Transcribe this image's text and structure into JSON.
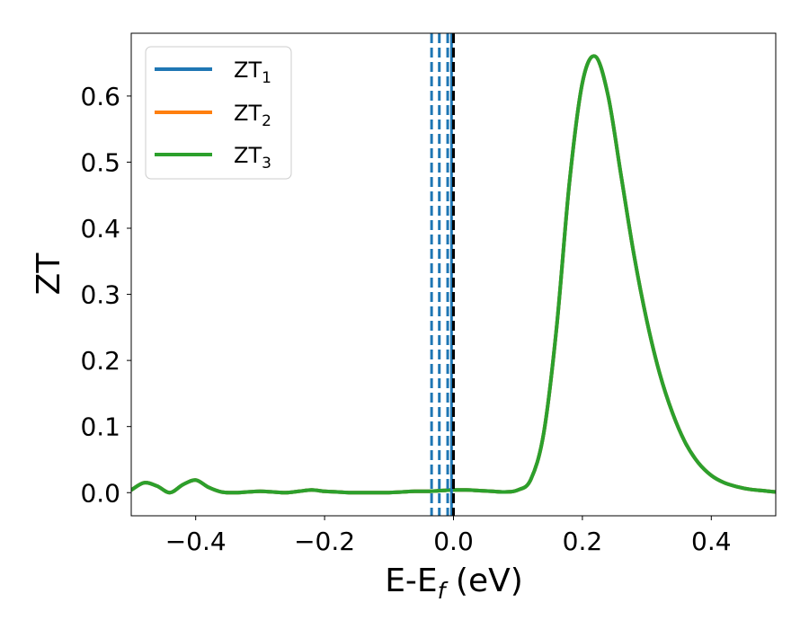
{
  "chart_data": {
    "type": "line",
    "xlabel": "E-E",
    "xlabel_subscript": "f",
    "xlabel_unit": " (eV)",
    "ylabel": "ZT",
    "xlim": [
      -0.5,
      0.5
    ],
    "ylim": [
      -0.035,
      0.695
    ],
    "xticks": [
      -0.4,
      -0.2,
      0.0,
      0.2,
      0.4
    ],
    "xtick_labels": [
      "−0.4",
      "−0.2",
      "0.0",
      "0.2",
      "0.4"
    ],
    "yticks": [
      0.0,
      0.1,
      0.2,
      0.3,
      0.4,
      0.5,
      0.6
    ],
    "ytick_labels": [
      "0.0",
      "0.1",
      "0.2",
      "0.3",
      "0.4",
      "0.5",
      "0.6"
    ],
    "grid": false,
    "legend_position": "top-left",
    "x": [
      -0.5,
      -0.48,
      -0.46,
      -0.44,
      -0.42,
      -0.4,
      -0.38,
      -0.36,
      -0.34,
      -0.32,
      -0.3,
      -0.28,
      -0.26,
      -0.24,
      -0.22,
      -0.2,
      -0.18,
      -0.16,
      -0.14,
      -0.12,
      -0.1,
      -0.08,
      -0.06,
      -0.04,
      -0.02,
      0.0,
      0.02,
      0.04,
      0.06,
      0.08,
      0.1,
      0.12,
      0.14,
      0.16,
      0.18,
      0.2,
      0.22,
      0.24,
      0.26,
      0.28,
      0.3,
      0.32,
      0.34,
      0.36,
      0.38,
      0.4,
      0.42,
      0.44,
      0.46,
      0.48,
      0.5
    ],
    "series": [
      {
        "name": "ZT",
        "subscript": "1",
        "color": "#1f77b4",
        "values": [
          0.004,
          0.015,
          0.01,
          0.0,
          0.012,
          0.019,
          0.008,
          0.001,
          0.0,
          0.001,
          0.002,
          0.001,
          0.0,
          0.002,
          0.004,
          0.002,
          0.001,
          0.0,
          0.0,
          0.0,
          0.0,
          0.001,
          0.002,
          0.002,
          0.003,
          0.004,
          0.004,
          0.003,
          0.002,
          0.001,
          0.004,
          0.02,
          0.09,
          0.25,
          0.47,
          0.62,
          0.66,
          0.6,
          0.48,
          0.36,
          0.26,
          0.18,
          0.12,
          0.075,
          0.045,
          0.026,
          0.015,
          0.009,
          0.005,
          0.003,
          0.001
        ]
      },
      {
        "name": "ZT",
        "subscript": "2",
        "color": "#ff7f0e",
        "values": [
          0.004,
          0.015,
          0.01,
          0.0,
          0.012,
          0.019,
          0.008,
          0.001,
          0.0,
          0.001,
          0.002,
          0.001,
          0.0,
          0.002,
          0.004,
          0.002,
          0.001,
          0.0,
          0.0,
          0.0,
          0.0,
          0.001,
          0.002,
          0.002,
          0.003,
          0.004,
          0.004,
          0.003,
          0.002,
          0.001,
          0.004,
          0.02,
          0.09,
          0.25,
          0.47,
          0.62,
          0.66,
          0.6,
          0.48,
          0.36,
          0.26,
          0.18,
          0.12,
          0.075,
          0.045,
          0.026,
          0.015,
          0.009,
          0.005,
          0.003,
          0.001
        ]
      },
      {
        "name": "ZT",
        "subscript": "3",
        "color": "#2ca02c",
        "values": [
          0.004,
          0.015,
          0.01,
          0.0,
          0.012,
          0.019,
          0.008,
          0.001,
          0.0,
          0.001,
          0.002,
          0.001,
          0.0,
          0.002,
          0.004,
          0.002,
          0.001,
          0.0,
          0.0,
          0.0,
          0.0,
          0.001,
          0.002,
          0.002,
          0.003,
          0.004,
          0.004,
          0.003,
          0.002,
          0.001,
          0.004,
          0.02,
          0.09,
          0.25,
          0.47,
          0.62,
          0.66,
          0.6,
          0.48,
          0.36,
          0.26,
          0.18,
          0.12,
          0.075,
          0.045,
          0.026,
          0.015,
          0.009,
          0.005,
          0.003,
          0.001
        ]
      }
    ],
    "vlines": [
      {
        "x": -0.034,
        "style": "dashed",
        "color": "#1f77b4"
      },
      {
        "x": -0.022,
        "style": "dashed",
        "color": "#1f77b4"
      },
      {
        "x": -0.009,
        "style": "dashed",
        "color": "#1f77b4"
      },
      {
        "x": -0.003,
        "style": "solid",
        "color": "#1f77b4"
      },
      {
        "x": 0.0,
        "style": "dashed",
        "color": "#000000"
      }
    ]
  }
}
